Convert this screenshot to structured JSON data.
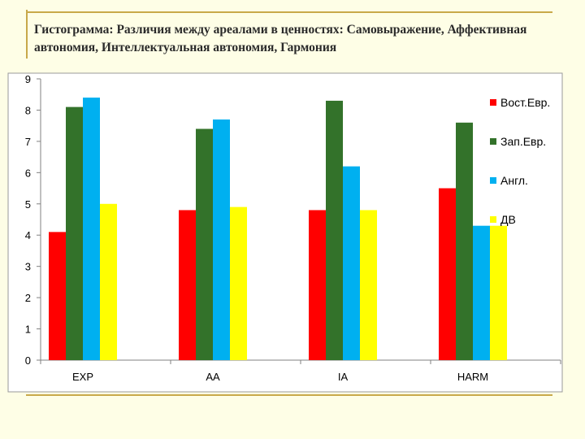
{
  "title": "Гистограмма: Различия между ареалами в ценностях: Самовыражение, Аффективная автономия, Интеллектуальная автономия, Гармония",
  "chart_data": {
    "type": "bar",
    "title": "Гистограмма: Различия между ареалами в ценностях: Самовыражение, Аффективная автономия, Интеллектуальная автономия, Гармония",
    "categories": [
      "EXP",
      "AA",
      "IA",
      "HARM"
    ],
    "series": [
      {
        "name": "Вост.Евр.",
        "color": "#ff0000",
        "values": [
          4.1,
          4.8,
          4.8,
          5.5
        ]
      },
      {
        "name": "Зап.Евр.",
        "color": "#33722a",
        "values": [
          8.1,
          7.4,
          8.3,
          7.6
        ]
      },
      {
        "name": "Англ.",
        "color": "#00b0f0",
        "values": [
          8.4,
          7.7,
          6.2,
          4.3
        ]
      },
      {
        "name": "ДВ",
        "color": "#ffff00",
        "values": [
          5.0,
          4.9,
          4.8,
          4.3
        ]
      }
    ],
    "y_ticks": [
      "0",
      "1",
      "2",
      "3",
      "4",
      "5",
      "6",
      "7",
      "8",
      "9"
    ],
    "ylim": [
      0,
      9
    ],
    "grid": false,
    "legend": "right",
    "xlabel": "",
    "ylabel": ""
  }
}
